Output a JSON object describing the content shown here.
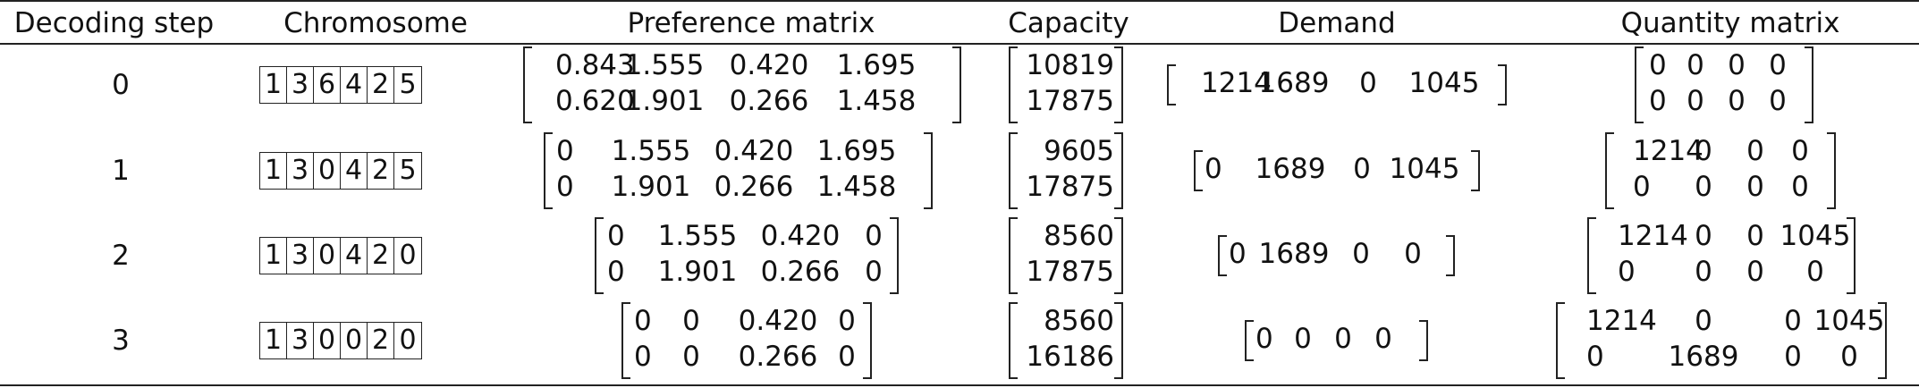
{
  "headers": [
    "Decoding step",
    "Chromosome",
    "Preference matrix",
    "Capacity",
    "Demand",
    "Quantity matrix"
  ],
  "rows": [
    {
      "step": "0",
      "chromosome": [
        "1",
        "3",
        "6",
        "4",
        "2",
        "5"
      ],
      "preference": [
        [
          "0.843",
          "1.555",
          "0.420",
          "1.695"
        ],
        [
          "0.620",
          "1.901",
          "0.266",
          "1.458"
        ]
      ],
      "capacity": [
        "10819",
        "17875"
      ],
      "demand": [
        "1214",
        "1689",
        "0",
        "1045"
      ],
      "quantity": [
        [
          "0",
          "0",
          "0",
          "0"
        ],
        [
          "0",
          "0",
          "0",
          "0"
        ]
      ]
    },
    {
      "step": "1",
      "chromosome": [
        "1",
        "3",
        "0",
        "4",
        "2",
        "5"
      ],
      "preference": [
        [
          "0",
          "1.555",
          "0.420",
          "1.695"
        ],
        [
          "0",
          "1.901",
          "0.266",
          "1.458"
        ]
      ],
      "capacity": [
        "9605",
        "17875"
      ],
      "demand": [
        "0",
        "1689",
        "0",
        "1045"
      ],
      "quantity": [
        [
          "1214",
          "0",
          "0",
          "0"
        ],
        [
          "0",
          "0",
          "0",
          "0"
        ]
      ]
    },
    {
      "step": "2",
      "chromosome": [
        "1",
        "3",
        "0",
        "4",
        "2",
        "0"
      ],
      "preference": [
        [
          "0",
          "1.555",
          "0.420",
          "0"
        ],
        [
          "0",
          "1.901",
          "0.266",
          "0"
        ]
      ],
      "capacity": [
        "8560",
        "17875"
      ],
      "demand": [
        "0",
        "1689",
        "0",
        "0"
      ],
      "quantity": [
        [
          "1214",
          "0",
          "0",
          "1045"
        ],
        [
          "0",
          "0",
          "0",
          "0"
        ]
      ]
    },
    {
      "step": "3",
      "chromosome": [
        "1",
        "3",
        "0",
        "0",
        "2",
        "0"
      ],
      "preference": [
        [
          "0",
          "0",
          "0.420",
          "0"
        ],
        [
          "0",
          "0",
          "0.266",
          "0"
        ]
      ],
      "capacity": [
        "8560",
        "16186"
      ],
      "demand": [
        "0",
        "0",
        "0",
        "0"
      ],
      "quantity": [
        [
          "1214",
          "0",
          "0",
          "1045"
        ],
        [
          "0",
          "1689",
          "0",
          "0"
        ]
      ]
    }
  ]
}
